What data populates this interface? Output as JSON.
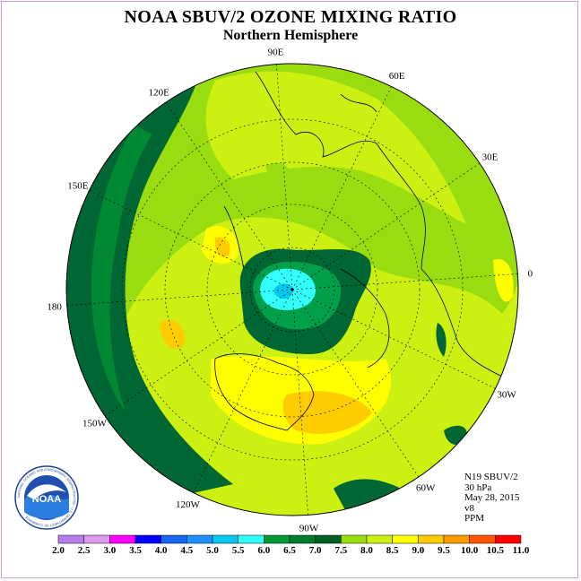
{
  "header": {
    "title": "NOAA SBUV/2 OZONE MIXING RATIO",
    "subtitle": "Northern Hemisphere"
  },
  "longitude_labels": [
    "90E",
    "60E",
    "30E",
    "0",
    "30W",
    "60W",
    "90W",
    "120W",
    "150W",
    "180",
    "150E",
    "120E"
  ],
  "info": {
    "instrument": "N19 SBUV/2",
    "level": "30 hPa",
    "date": "May 28, 2015",
    "version": "v8",
    "units": "PPM"
  },
  "colorbar": {
    "ticks": [
      "2.0",
      "2.5",
      "3.0",
      "3.5",
      "4.0",
      "4.5",
      "5.0",
      "5.5",
      "6.0",
      "6.5",
      "7.0",
      "7.5",
      "8.0",
      "8.5",
      "9.0",
      "9.5",
      "10.0",
      "10.5",
      "11.0"
    ],
    "colors": [
      "#b57ee8",
      "#dd99ee",
      "#ff00ff",
      "#0000ff",
      "#1a66ee",
      "#1e90ff",
      "#00c8f0",
      "#33ffff",
      "#009933",
      "#007a2e",
      "#005f22",
      "#99dd11",
      "#ccf011",
      "#ffff00",
      "#ffcc00",
      "#ff9900",
      "#ff5500",
      "#ff0000",
      "#996633"
    ]
  },
  "palette": {
    "ocean_level": "#ccf011",
    "dark_green": "#006633",
    "cyan": "#33ffff"
  },
  "logo": {
    "text": "NOAA",
    "ring_text": "NATIONAL OCEANIC AND ATMOSPHERIC ADMINISTRATION · U.S. DEPARTMENT OF COMMERCE"
  }
}
